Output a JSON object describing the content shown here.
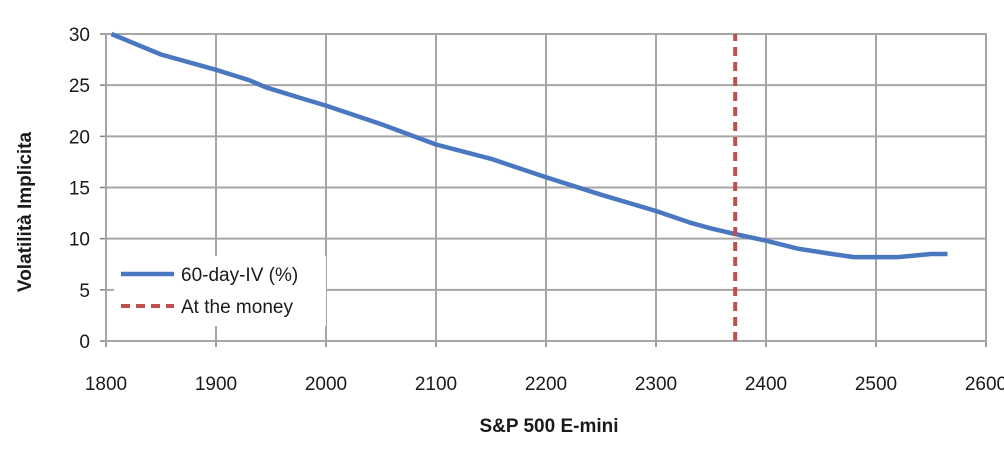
{
  "chart_data": {
    "type": "line",
    "title": "",
    "xlabel": "S&P 500 E-mini",
    "ylabel": "Volatilità Implicita",
    "xlim": [
      1800,
      2600
    ],
    "ylim": [
      0,
      30
    ],
    "x_ticks": [
      "1800",
      "1900",
      "2000",
      "2100",
      "2200",
      "2300",
      "2400",
      "2500",
      "2600"
    ],
    "y_ticks": [
      "0",
      "5",
      "10",
      "15",
      "20",
      "25",
      "30"
    ],
    "grid": true,
    "legend_position": "lower-left",
    "series": [
      {
        "name": "60-day-IV (%)",
        "color": "#4a78c0",
        "style": "solid",
        "x": [
          1805,
          1850,
          1900,
          1930,
          1945,
          1975,
          2000,
          2050,
          2100,
          2150,
          2200,
          2250,
          2300,
          2330,
          2350,
          2370,
          2400,
          2430,
          2460,
          2480,
          2500,
          2520,
          2550,
          2565
        ],
        "y": [
          30,
          28,
          26.5,
          25.5,
          24.8,
          23.8,
          23,
          21.2,
          19.2,
          17.8,
          16,
          14.3,
          12.7,
          11.6,
          11,
          10.5,
          9.8,
          9,
          8.5,
          8.2,
          8.2,
          8.2,
          8.5,
          8.5
        ]
      },
      {
        "name": "At the money",
        "color": "#c0504d",
        "style": "dashed",
        "x": [
          2372,
          2372
        ],
        "y": [
          0,
          30
        ]
      }
    ]
  }
}
